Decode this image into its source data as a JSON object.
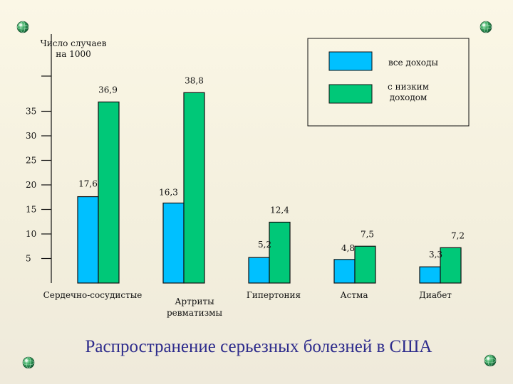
{
  "chart_data": {
    "type": "bar",
    "title": "Распространение серьезных болезней в США",
    "ylabel": [
      "Число случаев",
      "на 1000"
    ],
    "xlabel": "",
    "ylim": [
      0,
      40
    ],
    "yticks": [
      5,
      10,
      15,
      20,
      25,
      30,
      35
    ],
    "grid": false,
    "legend_position": "top-right",
    "categories": [
      [
        "Сердечно-сосудистые"
      ],
      [
        "Артриты",
        "ревматизмы"
      ],
      [
        "Гипертония"
      ],
      [
        "Астма"
      ],
      [
        "Диабет"
      ]
    ],
    "series": [
      {
        "name": "все доходы",
        "color": "#00c0ff",
        "values": [
          17.6,
          16.3,
          5.2,
          4.8,
          3.3
        ],
        "labels": [
          "17,6",
          "16,3",
          "5,2",
          "4,8",
          "3,3"
        ]
      },
      {
        "name": [
          "с низким",
          "доходом"
        ],
        "color": "#00c878",
        "values": [
          36.9,
          38.8,
          12.4,
          7.5,
          7.2
        ],
        "labels": [
          "36,9",
          "38,8",
          "12,4",
          "7,5",
          "7,2"
        ]
      }
    ]
  },
  "decor": {
    "icon": "green-globe-icon"
  }
}
